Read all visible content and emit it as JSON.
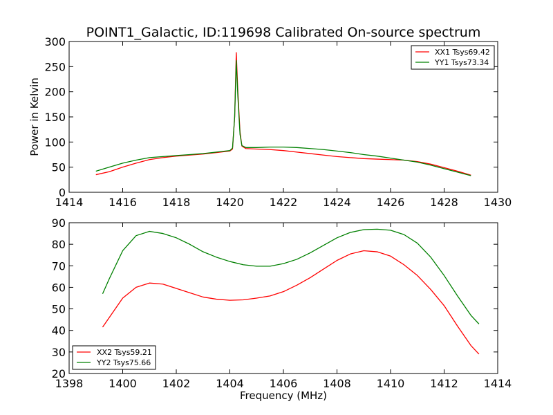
{
  "chart_data": [
    {
      "type": "line",
      "title": "POINT1_Galactic, ID:119698 Calibrated On-source spectrum",
      "xlabel": "",
      "ylabel": "Power in Kelvin",
      "xlim": [
        1414,
        1430
      ],
      "ylim": [
        0,
        300
      ],
      "xticks": [
        1414,
        1416,
        1418,
        1420,
        1422,
        1424,
        1426,
        1428,
        1430
      ],
      "yticks": [
        0,
        50,
        100,
        150,
        200,
        250,
        300
      ],
      "legend_position": "top-right",
      "series": [
        {
          "name": "XX1 Tsys69.42",
          "color": "#ff0000",
          "points": [
            [
              1415.0,
              35
            ],
            [
              1415.5,
              41
            ],
            [
              1416.0,
              50
            ],
            [
              1416.5,
              58
            ],
            [
              1417.0,
              65
            ],
            [
              1417.5,
              69
            ],
            [
              1418.0,
              72
            ],
            [
              1418.5,
              74
            ],
            [
              1419.0,
              76
            ],
            [
              1419.5,
              79
            ],
            [
              1420.0,
              82
            ],
            [
              1420.1,
              86
            ],
            [
              1420.18,
              150
            ],
            [
              1420.24,
              278
            ],
            [
              1420.3,
              200
            ],
            [
              1420.38,
              120
            ],
            [
              1420.45,
              92
            ],
            [
              1420.6,
              87
            ],
            [
              1421.0,
              86
            ],
            [
              1421.5,
              85
            ],
            [
              1422.0,
              83
            ],
            [
              1422.5,
              80
            ],
            [
              1423.0,
              77
            ],
            [
              1423.5,
              74
            ],
            [
              1424.0,
              71
            ],
            [
              1424.5,
              69
            ],
            [
              1425.0,
              67
            ],
            [
              1425.5,
              66
            ],
            [
              1426.0,
              65
            ],
            [
              1426.5,
              64
            ],
            [
              1427.0,
              61
            ],
            [
              1427.5,
              56
            ],
            [
              1428.0,
              49
            ],
            [
              1428.5,
              42
            ],
            [
              1429.0,
              34
            ]
          ]
        },
        {
          "name": "YY1 Tsys73.34",
          "color": "#008000",
          "points": [
            [
              1415.0,
              42
            ],
            [
              1415.5,
              50
            ],
            [
              1416.0,
              58
            ],
            [
              1416.5,
              64
            ],
            [
              1417.0,
              69
            ],
            [
              1417.5,
              71
            ],
            [
              1418.0,
              73
            ],
            [
              1418.5,
              75
            ],
            [
              1419.0,
              77
            ],
            [
              1419.5,
              80
            ],
            [
              1420.0,
              83
            ],
            [
              1420.1,
              88
            ],
            [
              1420.18,
              150
            ],
            [
              1420.24,
              262
            ],
            [
              1420.3,
              190
            ],
            [
              1420.38,
              115
            ],
            [
              1420.45,
              93
            ],
            [
              1420.6,
              89
            ],
            [
              1421.0,
              89
            ],
            [
              1421.5,
              90
            ],
            [
              1422.0,
              90
            ],
            [
              1422.5,
              89
            ],
            [
              1423.0,
              87
            ],
            [
              1423.5,
              85
            ],
            [
              1424.0,
              82
            ],
            [
              1424.5,
              79
            ],
            [
              1425.0,
              75
            ],
            [
              1425.5,
              72
            ],
            [
              1426.0,
              68
            ],
            [
              1426.5,
              64
            ],
            [
              1427.0,
              60
            ],
            [
              1427.5,
              54
            ],
            [
              1428.0,
              47
            ],
            [
              1428.5,
              40
            ],
            [
              1429.0,
              33
            ]
          ]
        }
      ]
    },
    {
      "type": "line",
      "title": "",
      "xlabel": "Frequency (MHz)",
      "ylabel": "",
      "xlim": [
        1398,
        1414
      ],
      "ylim": [
        20,
        90
      ],
      "xticks": [
        1398,
        1400,
        1402,
        1404,
        1406,
        1408,
        1410,
        1412,
        1414
      ],
      "yticks": [
        20,
        30,
        40,
        50,
        60,
        70,
        80,
        90
      ],
      "legend_position": "bottom-left",
      "series": [
        {
          "name": "XX2 Tsys59.21",
          "color": "#ff0000",
          "points": [
            [
              1399.25,
              41.5
            ],
            [
              1399.5,
              46
            ],
            [
              1400.0,
              55
            ],
            [
              1400.5,
              60
            ],
            [
              1401.0,
              62
            ],
            [
              1401.5,
              61.5
            ],
            [
              1402.0,
              59.5
            ],
            [
              1402.5,
              57.5
            ],
            [
              1403.0,
              55.5
            ],
            [
              1403.5,
              54.5
            ],
            [
              1404.0,
              54
            ],
            [
              1404.5,
              54.2
            ],
            [
              1405.0,
              55
            ],
            [
              1405.5,
              56
            ],
            [
              1406.0,
              58
            ],
            [
              1406.5,
              61
            ],
            [
              1407.0,
              64.5
            ],
            [
              1407.5,
              68.5
            ],
            [
              1408.0,
              72.5
            ],
            [
              1408.5,
              75.5
            ],
            [
              1409.0,
              77
            ],
            [
              1409.5,
              76.5
            ],
            [
              1410.0,
              74.5
            ],
            [
              1410.5,
              70.5
            ],
            [
              1411.0,
              65.5
            ],
            [
              1411.5,
              59
            ],
            [
              1412.0,
              51.5
            ],
            [
              1412.5,
              42
            ],
            [
              1413.0,
              33
            ],
            [
              1413.3,
              29
            ]
          ]
        },
        {
          "name": "YY2 Tsys75.66",
          "color": "#008000",
          "points": [
            [
              1399.25,
              57
            ],
            [
              1399.5,
              64
            ],
            [
              1400.0,
              77
            ],
            [
              1400.5,
              84
            ],
            [
              1401.0,
              86
            ],
            [
              1401.5,
              85
            ],
            [
              1402.0,
              83
            ],
            [
              1402.5,
              80
            ],
            [
              1403.0,
              76.5
            ],
            [
              1403.5,
              74
            ],
            [
              1404.0,
              72
            ],
            [
              1404.5,
              70.5
            ],
            [
              1405.0,
              69.8
            ],
            [
              1405.5,
              69.8
            ],
            [
              1406.0,
              71
            ],
            [
              1406.5,
              73
            ],
            [
              1407.0,
              76
            ],
            [
              1407.5,
              79.5
            ],
            [
              1408.0,
              83
            ],
            [
              1408.5,
              85.5
            ],
            [
              1409.0,
              86.8
            ],
            [
              1409.5,
              87
            ],
            [
              1410.0,
              86.5
            ],
            [
              1410.5,
              84.5
            ],
            [
              1411.0,
              80.5
            ],
            [
              1411.5,
              74
            ],
            [
              1412.0,
              65.5
            ],
            [
              1412.5,
              56
            ],
            [
              1413.0,
              47
            ],
            [
              1413.3,
              43
            ]
          ]
        }
      ]
    }
  ]
}
